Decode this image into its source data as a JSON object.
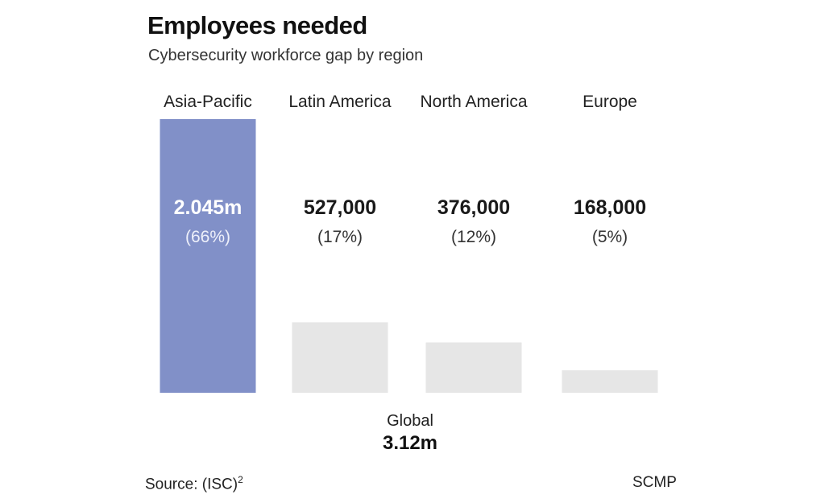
{
  "header": {
    "title": "Employees needed",
    "subtitle": "Cybersecurity workforce gap by region"
  },
  "chart_data": {
    "type": "bar",
    "title": "Employees needed",
    "subtitle": "Cybersecurity workforce gap by region",
    "categories": [
      "Asia-Pacific",
      "Latin America",
      "North America",
      "Europe"
    ],
    "values": [
      2045000,
      527000,
      376000,
      168000
    ],
    "value_labels": [
      "2.045m",
      "527,000",
      "376,000",
      "168,000"
    ],
    "share_labels": [
      "(66%)",
      "(17%)",
      "(12%)",
      "(5%)"
    ],
    "highlight_index": 0,
    "total_label": "Global",
    "total_value": "3.12m",
    "xlabel": "",
    "ylabel": "",
    "ylim": [
      0,
      2045000
    ],
    "grid": false,
    "colors": {
      "highlight": "#8190c8",
      "bar": "#e6e6e6",
      "highlight_text": "#ffffff",
      "highlight_share_text": "#eef0fa",
      "text": "#1a1a1a"
    }
  },
  "footer": {
    "source_label": "Source: (ISC)",
    "source_sup": "2",
    "credit": "SCMP"
  }
}
